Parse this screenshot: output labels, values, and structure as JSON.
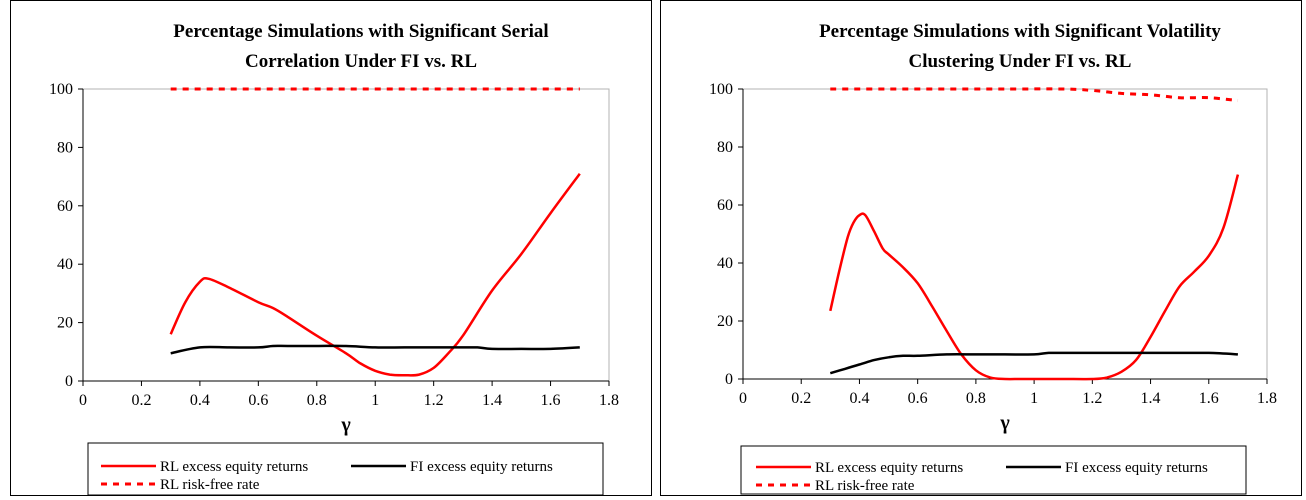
{
  "chart_data": [
    {
      "type": "line",
      "title_lines": [
        "Percentage Simulations with Significant Serial",
        "Correlation Under FI vs. RL"
      ],
      "xlabel": "γ",
      "ylabel": "",
      "xlim": [
        0,
        1.8
      ],
      "ylim": [
        0,
        100
      ],
      "x_ticks": [
        "0",
        "0.2",
        "0.4",
        "0.6",
        "0.8",
        "1",
        "1.2",
        "1.4",
        "1.6",
        "1.8"
      ],
      "y_ticks": [
        "0",
        "20",
        "40",
        "60",
        "80",
        "100"
      ],
      "legend": "bottom",
      "grid": false,
      "series": [
        {
          "name": "RL excess equity returns",
          "color": "#ff0000",
          "style": "solid",
          "x": [
            0.3,
            0.35,
            0.4,
            0.43,
            0.5,
            0.6,
            0.65,
            0.7,
            0.8,
            0.9,
            0.95,
            1.0,
            1.05,
            1.1,
            1.15,
            1.2,
            1.25,
            1.3,
            1.4,
            1.5,
            1.6,
            1.7
          ],
          "y": [
            16,
            27,
            34,
            35,
            32,
            27,
            25,
            22,
            15.5,
            9.5,
            6,
            3.5,
            2.2,
            2,
            2.2,
            4.5,
            9.5,
            15.5,
            31,
            43.5,
            57.5,
            71
          ]
        },
        {
          "name": "FI excess equity returns",
          "color": "#000000",
          "style": "solid",
          "x": [
            0.3,
            0.4,
            0.5,
            0.6,
            0.65,
            0.7,
            0.8,
            0.9,
            1.0,
            1.1,
            1.2,
            1.3,
            1.35,
            1.4,
            1.5,
            1.6,
            1.7
          ],
          "y": [
            9.5,
            11.5,
            11.5,
            11.5,
            12,
            12,
            12,
            12,
            11.5,
            11.5,
            11.5,
            11.5,
            11.5,
            11,
            11,
            11,
            11.5
          ]
        },
        {
          "name": "RL risk-free rate",
          "color": "#ff0000",
          "style": "dotted",
          "x": [
            0.3,
            0.5,
            0.7,
            0.9,
            1.1,
            1.3,
            1.5,
            1.7
          ],
          "y": [
            100,
            100,
            100,
            100,
            100,
            100,
            100,
            100
          ]
        }
      ]
    },
    {
      "type": "line",
      "title_lines": [
        "Percentage Simulations with Significant Volatility",
        "Clustering Under FI vs. RL"
      ],
      "xlabel": "γ",
      "ylabel": "",
      "xlim": [
        0,
        1.8
      ],
      "ylim": [
        0,
        100
      ],
      "x_ticks": [
        "0",
        "0.2",
        "0.4",
        "0.6",
        "0.8",
        "1",
        "1.2",
        "1.4",
        "1.6",
        "1.8"
      ],
      "y_ticks": [
        "0",
        "20",
        "40",
        "60",
        "80",
        "100"
      ],
      "legend": "bottom",
      "grid": false,
      "series": [
        {
          "name": "RL excess equity returns",
          "color": "#ff0000",
          "style": "solid",
          "x": [
            0.3,
            0.33,
            0.36,
            0.38,
            0.4,
            0.42,
            0.45,
            0.48,
            0.5,
            0.55,
            0.6,
            0.65,
            0.7,
            0.75,
            0.8,
            0.85,
            0.9,
            0.95,
            1.0,
            1.1,
            1.2,
            1.25,
            1.3,
            1.35,
            1.4,
            1.45,
            1.5,
            1.55,
            1.6,
            1.65,
            1.7
          ],
          "y": [
            23.5,
            37,
            49,
            54,
            56.5,
            56.5,
            51,
            45,
            43,
            38.5,
            33,
            25,
            16.5,
            8.5,
            3,
            0.5,
            0,
            0,
            0,
            0,
            0,
            0.5,
            2.5,
            6.5,
            14.5,
            23.5,
            32,
            37,
            42.5,
            52,
            70.5
          ]
        },
        {
          "name": "FI excess equity returns",
          "color": "#000000",
          "style": "solid",
          "x": [
            0.3,
            0.35,
            0.4,
            0.45,
            0.5,
            0.55,
            0.6,
            0.7,
            0.8,
            0.9,
            1.0,
            1.05,
            1.1,
            1.2,
            1.3,
            1.4,
            1.5,
            1.6,
            1.7
          ],
          "y": [
            2,
            3.5,
            5,
            6.5,
            7.5,
            8,
            8,
            8.5,
            8.5,
            8.5,
            8.5,
            9,
            9,
            9,
            9,
            9,
            9,
            9,
            8.5
          ]
        },
        {
          "name": "RL risk-free rate",
          "color": "#ff0000",
          "style": "dotted",
          "x": [
            0.3,
            0.5,
            0.7,
            0.9,
            1.1,
            1.2,
            1.3,
            1.4,
            1.5,
            1.6,
            1.7
          ],
          "y": [
            100,
            100,
            100,
            100,
            100,
            99.5,
            98.5,
            98,
            97,
            97,
            96
          ]
        }
      ]
    }
  ]
}
